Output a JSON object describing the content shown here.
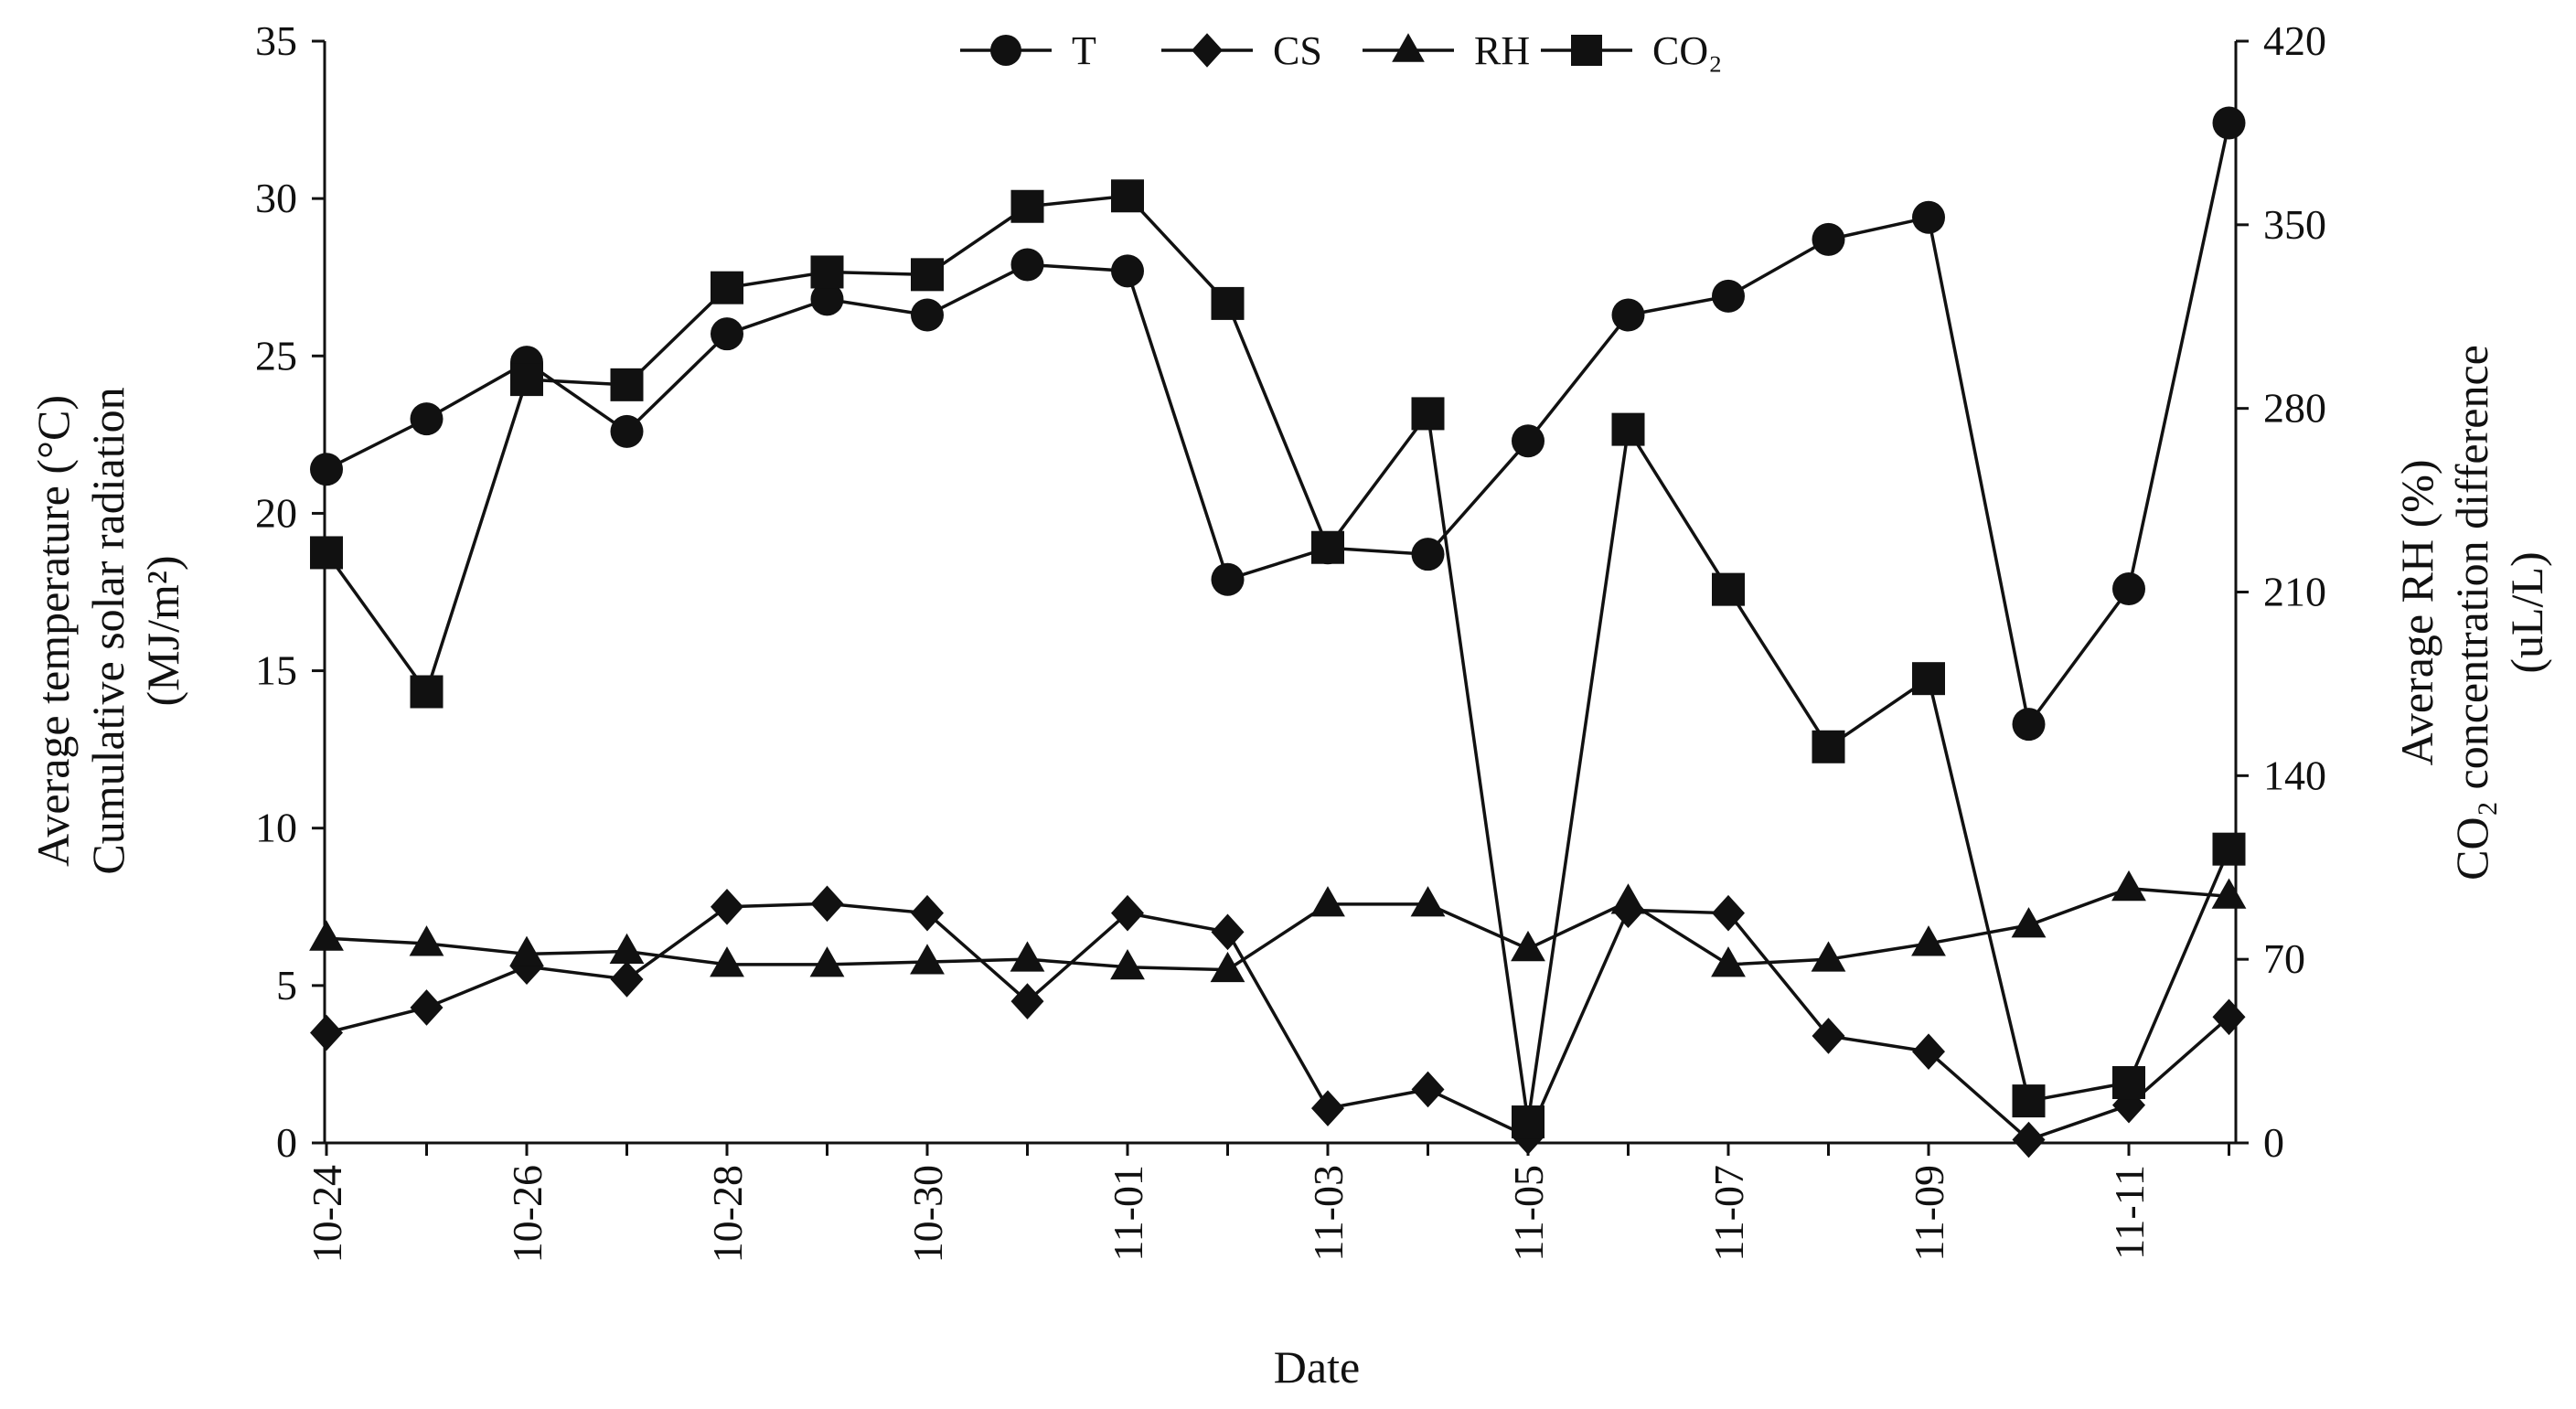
{
  "chart_data": {
    "type": "line",
    "xlabel": "Date",
    "ylabel_left": [
      "Average temperature (°C)",
      "Cumulative solar radiation",
      "(MJ/m²)"
    ],
    "ylabel_right": [
      "Average RH (%)",
      "CO₂ concentration difference",
      "(uL/L)"
    ],
    "ylim_left": [
      0,
      35
    ],
    "ylim_right": [
      0,
      420
    ],
    "yticks_left": [
      "0",
      "5",
      "10",
      "15",
      "20",
      "25",
      "30",
      "35"
    ],
    "yticks_right": [
      "0",
      "70",
      "140",
      "210",
      "280",
      "350",
      "420"
    ],
    "categories": [
      "10-24",
      "10-25",
      "10-26",
      "10-27",
      "10-28",
      "10-29",
      "10-30",
      "10-31",
      "11-01",
      "11-02",
      "11-03",
      "11-04",
      "11-05",
      "11-06",
      "11-07",
      "11-08",
      "11-09",
      "11-10",
      "11-11",
      "11-12"
    ],
    "xtick_labels": [
      "10-24",
      "",
      "10-26",
      "",
      "10-28",
      "",
      "10-30",
      "",
      "11-01",
      "",
      "11-03",
      "",
      "11-05",
      "",
      "11-07",
      "",
      "11-09",
      "",
      "11-11",
      ""
    ],
    "grid": false,
    "legend_position": "top",
    "series": [
      {
        "name": "T",
        "axis": "left",
        "marker": "circle",
        "values": [
          21.4,
          23.0,
          24.8,
          22.6,
          25.7,
          26.8,
          26.3,
          27.9,
          27.7,
          17.9,
          18.9,
          18.7,
          22.3,
          26.3,
          26.9,
          28.7,
          29.4,
          13.3,
          17.6,
          32.4
        ]
      },
      {
        "name": "CS",
        "axis": "left",
        "marker": "diamond",
        "values": [
          3.5,
          4.3,
          5.6,
          5.2,
          7.5,
          7.6,
          7.3,
          4.5,
          7.3,
          6.7,
          1.1,
          1.7,
          0.2,
          7.4,
          7.3,
          3.4,
          2.9,
          0.1,
          1.2,
          4.0
        ]
      },
      {
        "name": "RH",
        "axis": "right",
        "marker": "triangle",
        "values": [
          78,
          76,
          72,
          73,
          68,
          68,
          69,
          70,
          67,
          66,
          91,
          91,
          74,
          92,
          68,
          70,
          76,
          83,
          97,
          94
        ]
      },
      {
        "name": "CO2",
        "legend_label": "CO₂",
        "axis": "right",
        "marker": "square",
        "values": [
          225,
          172,
          291,
          289,
          326,
          332,
          331,
          357,
          361,
          320,
          227,
          278,
          8,
          272,
          211,
          151,
          177,
          16,
          23,
          112
        ]
      }
    ]
  }
}
